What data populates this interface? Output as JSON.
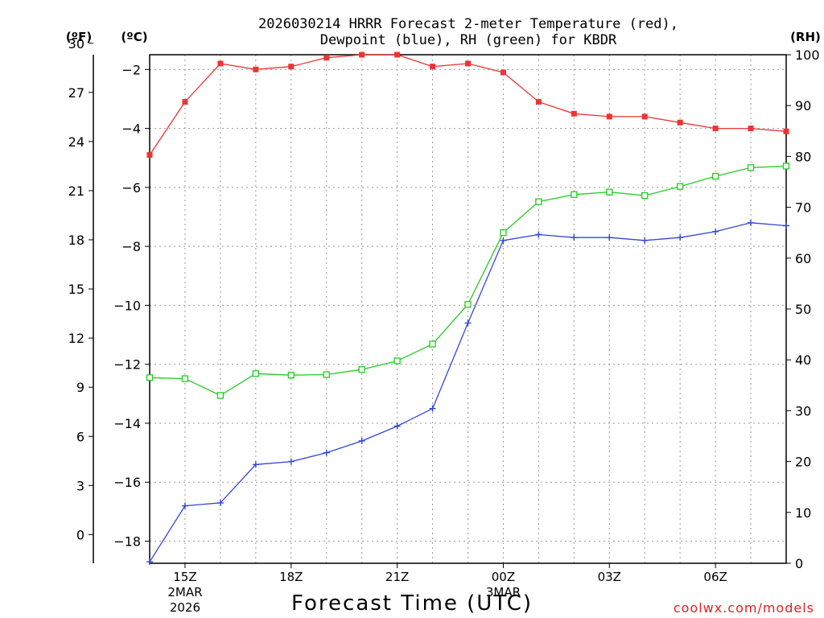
{
  "chart_data": {
    "type": "line",
    "title_line1": "2026030214 HRRR Forecast 2-meter Temperature (red),",
    "title_line2": "Dewpoint (blue), RH (green) for KBDR",
    "xlabel": "Forecast Time (UTC)",
    "watermark": "coolwx.com/models",
    "axis_unit_labels": {
      "fahrenheit": "(ºF)",
      "celsius": "(ºC)",
      "rh": "(RH)"
    },
    "x_hours": [
      14,
      15,
      16,
      17,
      18,
      19,
      20,
      21,
      22,
      23,
      24,
      25,
      26,
      27,
      28,
      29,
      30,
      31,
      32
    ],
    "xlim": [
      14,
      32
    ],
    "x_ticks": [
      {
        "hour": 15,
        "label": "15Z",
        "sub1": "2MAR",
        "sub2": "2026"
      },
      {
        "hour": 18,
        "label": "18Z",
        "sub1": "",
        "sub2": ""
      },
      {
        "hour": 21,
        "label": "21Z",
        "sub1": "",
        "sub2": ""
      },
      {
        "hour": 24,
        "label": "00Z",
        "sub1": "3MAR",
        "sub2": ""
      },
      {
        "hour": 27,
        "label": "03Z",
        "sub1": "",
        "sub2": ""
      },
      {
        "hour": 30,
        "label": "06Z",
        "sub1": "",
        "sub2": ""
      }
    ],
    "celsius_ylim": [
      -18.75,
      -1.5
    ],
    "celsius_ticks": [
      -18,
      -16,
      -14,
      -12,
      -10,
      -8,
      -6,
      -4,
      -2
    ],
    "celsius_tick_labels": [
      "−18",
      "−16",
      "−14",
      "−12",
      "−10",
      "−8",
      "−6",
      "−4",
      "−2"
    ],
    "fahrenheit_ticks": [
      0,
      3,
      6,
      9,
      12,
      15,
      18,
      21,
      24,
      27,
      30
    ],
    "fahrenheit_tick_labels": [
      "0",
      "3",
      "6",
      "9",
      "12",
      "15",
      "18",
      "21",
      "24",
      "27",
      "30"
    ],
    "rh_ylim": [
      0,
      100
    ],
    "rh_ticks": [
      0,
      10,
      20,
      30,
      40,
      50,
      60,
      70,
      80,
      90,
      100
    ],
    "rh_tick_labels": [
      "0",
      "10",
      "20",
      "30",
      "40",
      "50",
      "60",
      "70",
      "80",
      "90",
      "100"
    ],
    "series": [
      {
        "name": "Temperature",
        "axis": "celsius",
        "color": "#ee3333",
        "marker": "filled-square",
        "values": [
          -4.9,
          -3.1,
          -1.8,
          -2.0,
          -1.9,
          -1.6,
          -1.5,
          -1.5,
          -1.9,
          -1.8,
          -2.1,
          -3.1,
          -3.5,
          -3.6,
          -3.6,
          -3.8,
          -4.0,
          -4.0,
          -4.1
        ]
      },
      {
        "name": "Dewpoint",
        "axis": "celsius",
        "color": "#3344dd",
        "marker": "plus",
        "values": [
          -18.7,
          -16.8,
          -16.7,
          -15.4,
          -15.3,
          -15.0,
          -14.6,
          -14.1,
          -13.5,
          -10.6,
          -7.8,
          -7.6,
          -7.7,
          -7.7,
          -7.8,
          -7.7,
          -7.5,
          -7.2,
          -7.3
        ]
      },
      {
        "name": "RH",
        "axis": "rh",
        "color": "#22cc22",
        "marker": "open-square",
        "values": [
          36.5,
          36.3,
          33.0,
          37.3,
          37.0,
          37.1,
          38.1,
          39.8,
          43.1,
          50.9,
          65.0,
          71.1,
          72.5,
          73.0,
          72.3,
          74.1,
          76.1,
          77.8,
          78.1
        ]
      }
    ]
  }
}
